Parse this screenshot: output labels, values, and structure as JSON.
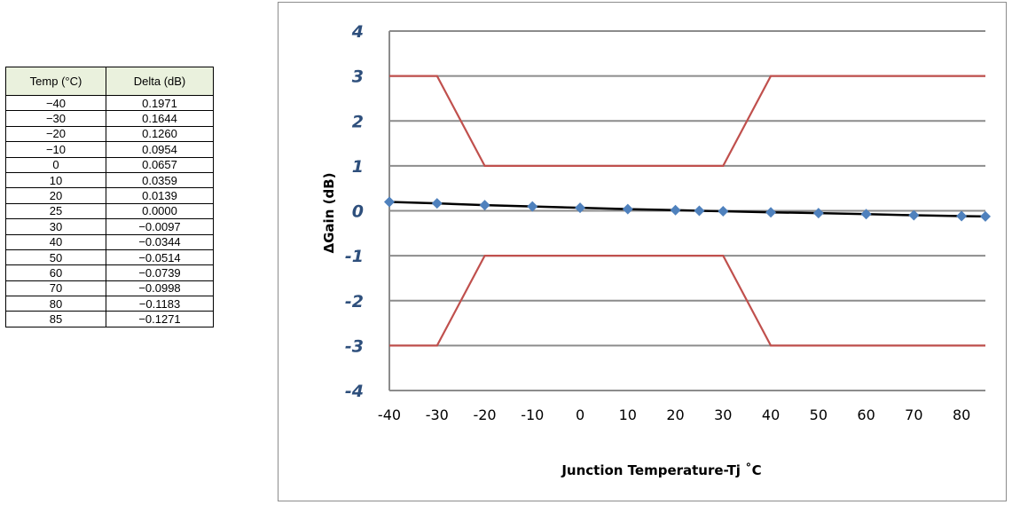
{
  "table": {
    "headers": [
      "Temp (°C)",
      "Delta (dB)"
    ],
    "rows": [
      [
        "−40",
        "0.1971"
      ],
      [
        "−30",
        "0.1644"
      ],
      [
        "−20",
        "0.1260"
      ],
      [
        "−10",
        "0.0954"
      ],
      [
        "0",
        "0.0657"
      ],
      [
        "10",
        "0.0359"
      ],
      [
        "20",
        "0.0139"
      ],
      [
        "25",
        "0.0000"
      ],
      [
        "30",
        "−0.0097"
      ],
      [
        "40",
        "−0.0344"
      ],
      [
        "50",
        "−0.0514"
      ],
      [
        "60",
        "−0.0739"
      ],
      [
        "70",
        "−0.0998"
      ],
      [
        "80",
        "−0.1183"
      ],
      [
        "85",
        "−0.1271"
      ]
    ]
  },
  "chart_data": {
    "type": "line",
    "title": "",
    "xlabel": "Junction Temperature-Tj ˚C",
    "ylabel": "ΔGain (dB)",
    "xlim": [
      -40,
      85
    ],
    "ylim": [
      -4,
      4
    ],
    "x_ticks": [
      -40,
      -30,
      -20,
      -10,
      0,
      10,
      20,
      30,
      40,
      50,
      60,
      70,
      80
    ],
    "y_ticks": [
      4,
      3,
      2,
      1,
      0,
      -1,
      -2,
      -3,
      -4
    ],
    "grid": true,
    "legend": "none",
    "colors": {
      "data": "#000000",
      "marker": "#4f81bd",
      "limit": "#c0504d",
      "grid": "#8c8c8c",
      "ytick": "#2e4f7c"
    },
    "series": [
      {
        "x": [
          -40,
          -30,
          -20,
          -10,
          0,
          10,
          20,
          25,
          30,
          40,
          50,
          60,
          70,
          80,
          85
        ],
        "values": [
          0.1971,
          0.1644,
          0.126,
          0.0954,
          0.0657,
          0.0359,
          0.0139,
          0.0,
          -0.0097,
          -0.0344,
          -0.0514,
          -0.0739,
          -0.0998,
          -0.1183,
          -0.1271
        ],
        "style": "line-marker"
      },
      {
        "x": [
          -40,
          -30,
          -20,
          30,
          40,
          85
        ],
        "values": [
          3,
          3,
          1,
          1,
          3,
          3
        ],
        "style": "line"
      },
      {
        "x": [
          -40,
          -30,
          -20,
          30,
          40,
          85
        ],
        "values": [
          -3,
          -3,
          -1,
          -1,
          -3,
          -3
        ],
        "style": "line"
      }
    ]
  }
}
